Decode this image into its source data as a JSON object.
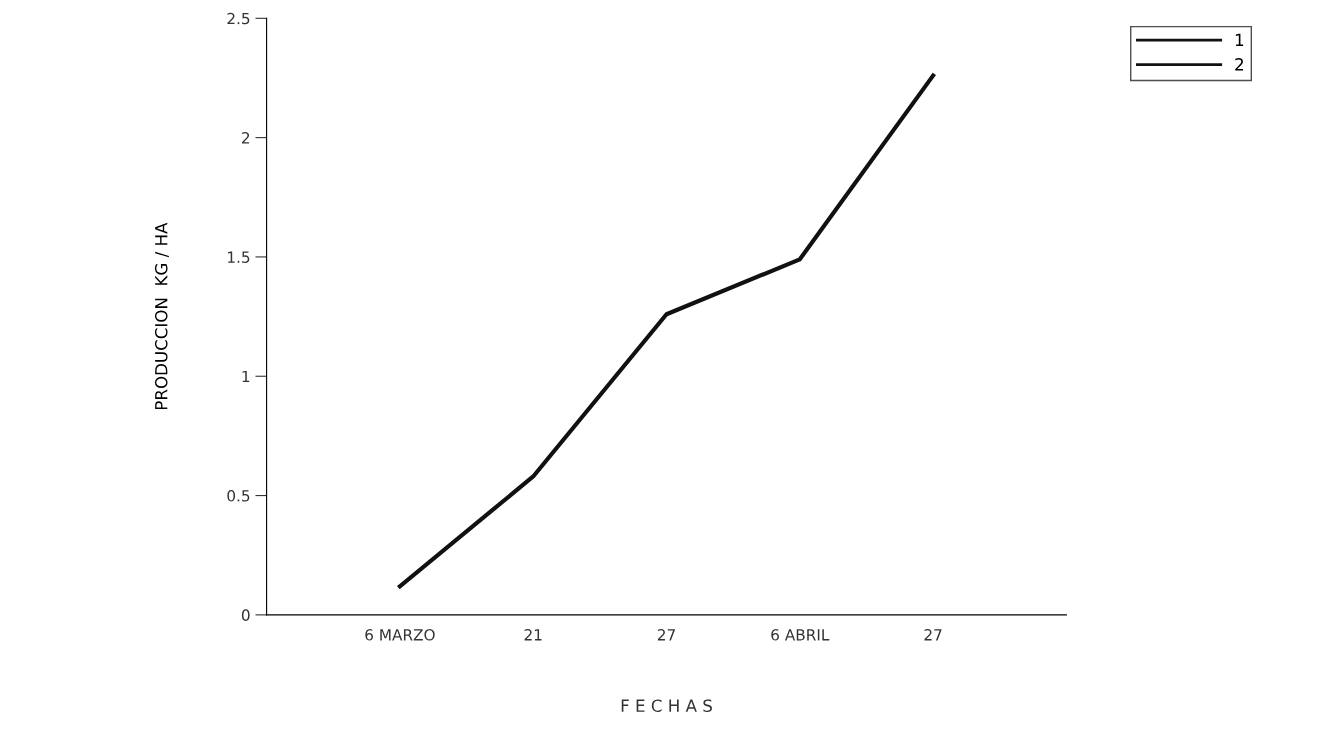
{
  "chart_data": {
    "type": "line",
    "xlabel": "F E C H A S",
    "ylabel": "PRODUCCION  KG / HA",
    "categories": [
      "6 MARZO",
      "21",
      "27",
      "6 ABRIL",
      "27"
    ],
    "series": [
      {
        "name": "1",
        "color": "#111111",
        "values": [
          0.12,
          0.58,
          1.26,
          1.49,
          2.26
        ]
      },
      {
        "name": "2",
        "color": "#111111",
        "values": [
          null,
          null,
          null,
          null,
          null
        ]
      }
    ],
    "ylim": [
      0,
      2.5
    ],
    "yticks": [
      0,
      0.5,
      1,
      1.5,
      2,
      2.5
    ],
    "grid": false,
    "legend": "top right",
    "marker": "none",
    "line_style": "solid"
  }
}
